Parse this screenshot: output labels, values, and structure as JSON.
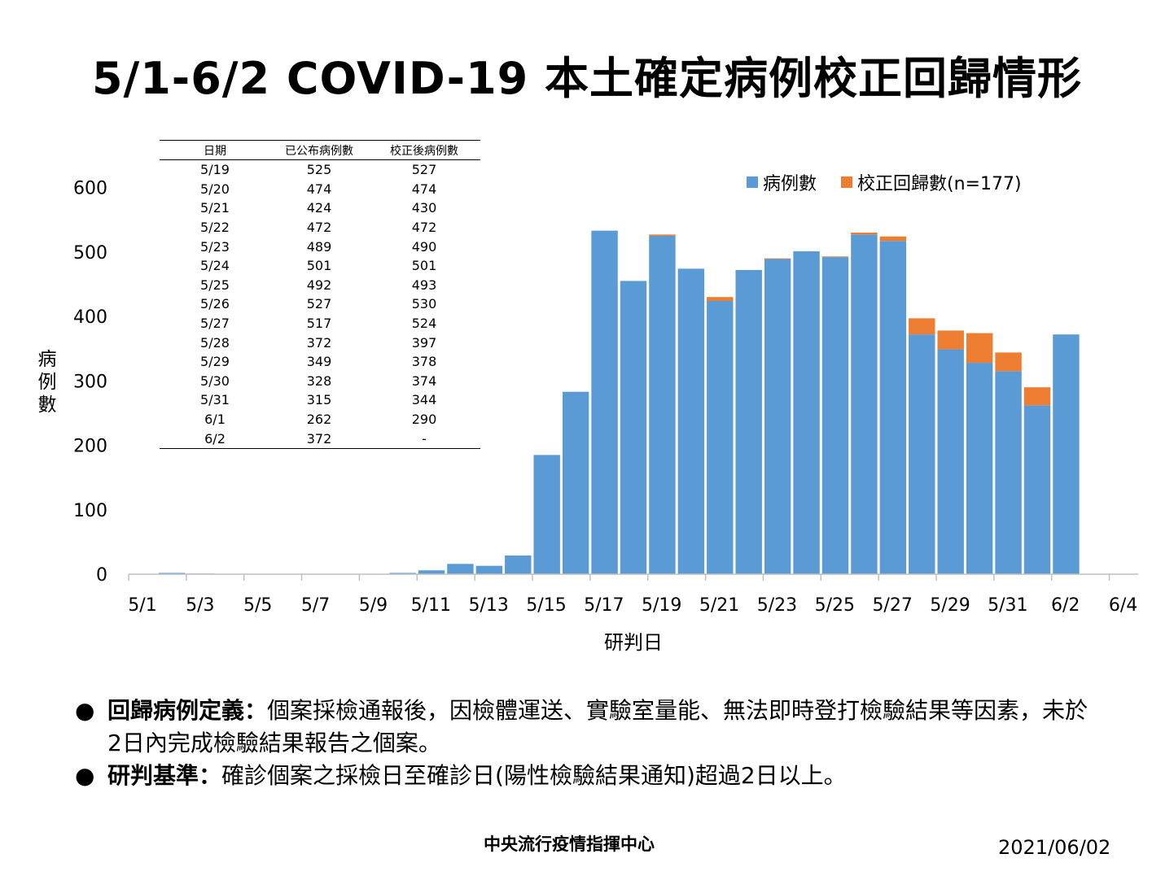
{
  "title": "5/1-6/2 COVID-19 本土確定病例校正回歸情形",
  "chart_data": {
    "type": "bar",
    "stacked": true,
    "x_start": "5/1",
    "x": [
      "5/1",
      "5/2",
      "5/3",
      "5/4",
      "5/5",
      "5/6",
      "5/7",
      "5/8",
      "5/9",
      "5/10",
      "5/11",
      "5/12",
      "5/13",
      "5/14",
      "5/15",
      "5/16",
      "5/17",
      "5/18",
      "5/19",
      "5/20",
      "5/21",
      "5/22",
      "5/23",
      "5/24",
      "5/25",
      "5/26",
      "5/27",
      "5/28",
      "5/29",
      "5/30",
      "5/31",
      "6/1",
      "6/2"
    ],
    "series": [
      {
        "name": "病例數",
        "color": "#5B9BD5",
        "values": [
          0,
          2,
          1,
          0,
          0,
          0,
          0,
          0,
          0,
          2,
          6,
          16,
          13,
          29,
          185,
          283,
          533,
          455,
          525,
          474,
          424,
          472,
          489,
          501,
          492,
          527,
          517,
          372,
          349,
          328,
          315,
          262,
          372
        ]
      },
      {
        "name": "校正回歸數(n=177)",
        "color": "#ED7D31",
        "values": [
          0,
          0,
          0,
          0,
          0,
          0,
          0,
          0,
          0,
          0,
          0,
          0,
          0,
          0,
          0,
          0,
          0,
          0,
          2,
          0,
          6,
          0,
          1,
          0,
          1,
          3,
          7,
          25,
          29,
          46,
          29,
          28,
          0
        ]
      }
    ],
    "x_ticks": [
      "5/1",
      "5/3",
      "5/5",
      "5/7",
      "5/9",
      "5/11",
      "5/13",
      "5/15",
      "5/17",
      "5/19",
      "5/21",
      "5/23",
      "5/25",
      "5/27",
      "5/29",
      "5/31",
      "6/2",
      "6/4"
    ],
    "y_ticks": [
      0,
      100,
      200,
      300,
      400,
      500,
      600
    ],
    "ylim": [
      0,
      640
    ],
    "xlabel": "研判日",
    "ylabel": "病例數",
    "legend_position": "top-right",
    "grid": false
  },
  "legend": {
    "cases_label": "病例數",
    "correction_label": "校正回歸數(n=177)"
  },
  "table": {
    "headers": [
      "日期",
      "已公布病例數",
      "校正後病例數"
    ],
    "rows": [
      [
        "5/19",
        "525",
        "527"
      ],
      [
        "5/20",
        "474",
        "474"
      ],
      [
        "5/21",
        "424",
        "430"
      ],
      [
        "5/22",
        "472",
        "472"
      ],
      [
        "5/23",
        "489",
        "490"
      ],
      [
        "5/24",
        "501",
        "501"
      ],
      [
        "5/25",
        "492",
        "493"
      ],
      [
        "5/26",
        "527",
        "530"
      ],
      [
        "5/27",
        "517",
        "524"
      ],
      [
        "5/28",
        "372",
        "397"
      ],
      [
        "5/29",
        "349",
        "378"
      ],
      [
        "5/30",
        "328",
        "374"
      ],
      [
        "5/31",
        "315",
        "344"
      ],
      [
        "6/1",
        "262",
        "290"
      ],
      [
        "6/2",
        "372",
        "-"
      ]
    ]
  },
  "notes": [
    {
      "bullet": "●",
      "term": "回歸病例定義：",
      "text": "個案採檢通報後，因檢體運送、實驗室量能、無法即時登打檢驗結果等因素，未於2日內完成檢驗結果報告之個案。"
    },
    {
      "bullet": "●",
      "term": "研判基準：",
      "text": "確診個案之採檢日至確診日(陽性檢驗結果通知)超過2日以上。"
    }
  ],
  "footer": {
    "org": "中央流行疫情指揮中心",
    "date": "2021/06/02"
  }
}
